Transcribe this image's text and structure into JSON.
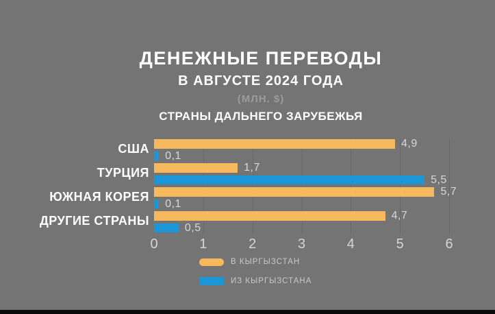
{
  "header": {
    "title": "ДЕНЕЖНЫЕ ПЕРЕВОДЫ",
    "subtitle": "В АВГУСТЕ 2024 ГОДА",
    "unit": "(МЛН. $)",
    "section": "СТРАНЫ ДАЛЬНЕГО ЗАРУБЕЖЬЯ"
  },
  "chart_data": {
    "type": "bar",
    "orientation": "horizontal",
    "categories": [
      "США",
      "ТУРЦИЯ",
      "ЮЖНАЯ КОРЕЯ",
      "ДРУГИЕ СТРАНЫ"
    ],
    "series": [
      {
        "name": "В КЫРГЫЗСТАН",
        "color": "#f6b95d",
        "values": [
          4.9,
          1.7,
          5.7,
          4.7
        ],
        "value_labels": [
          "4,9",
          "1,7",
          "5,7",
          "4,7"
        ]
      },
      {
        "name": "ИЗ КЫРГЫЗСТАНА",
        "color": "#1b96d6",
        "values": [
          0.1,
          5.5,
          0.1,
          0.5
        ],
        "value_labels": [
          "0,1",
          "5,5",
          "0,1",
          "0,5"
        ]
      }
    ],
    "xlim": [
      0,
      6
    ],
    "x_ticks": [
      "0",
      "1",
      "2",
      "3",
      "4",
      "5",
      "6"
    ],
    "grid": true,
    "legend_position": "bottom-left"
  },
  "style": {
    "background": "#747474",
    "title_color": "#ffffff",
    "muted_text_color": "#9b9b9b",
    "tick_color": "#d6d6d6",
    "value_label_color": "#d8d8d8",
    "legend_text_color": "#c9c9c9",
    "bar_orange": "#f6b95d",
    "bar_blue": "#1b96d6",
    "bottom_bar_color": "#0a0a0a"
  }
}
